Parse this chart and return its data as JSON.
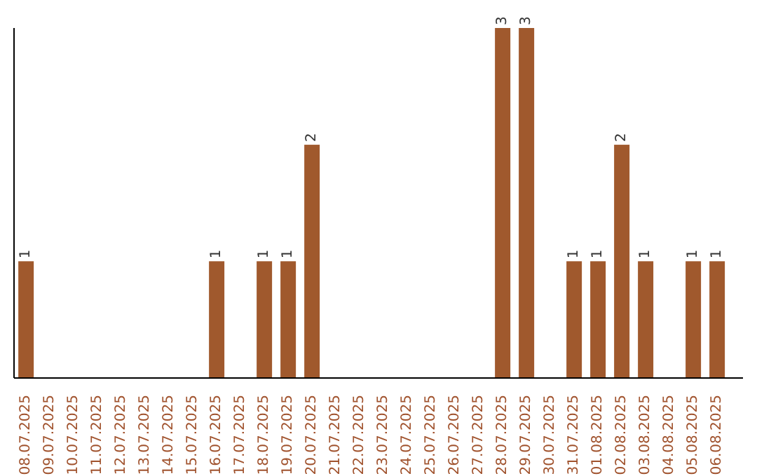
{
  "chart_data": {
    "type": "bar",
    "categories": [
      "08.07.2025",
      "09.07.2025",
      "10.07.2025",
      "11.07.2025",
      "12.07.2025",
      "13.07.2025",
      "14.07.2025",
      "15.07.2025",
      "16.07.2025",
      "17.07.2025",
      "18.07.2025",
      "19.07.2025",
      "20.07.2025",
      "21.07.2025",
      "22.07.2025",
      "23.07.2025",
      "24.07.2025",
      "25.07.2025",
      "26.07.2025",
      "27.07.2025",
      "28.07.2025",
      "29.07.2025",
      "30.07.2025",
      "31.07.2025",
      "01.08.2025",
      "02.08.2025",
      "03.08.2025",
      "04.08.2025",
      "05.08.2025",
      "06.08.2025"
    ],
    "values": [
      1,
      0,
      0,
      0,
      0,
      0,
      0,
      0,
      1,
      0,
      1,
      1,
      2,
      0,
      0,
      0,
      0,
      0,
      0,
      0,
      3,
      3,
      0,
      1,
      1,
      2,
      1,
      0,
      1,
      1
    ],
    "value_labels": [
      "1",
      null,
      null,
      null,
      null,
      null,
      null,
      null,
      "1",
      null,
      "1",
      "1",
      "2",
      null,
      null,
      null,
      null,
      null,
      null,
      null,
      "3",
      "3",
      null,
      "1",
      "1",
      "2",
      "1",
      null,
      "1",
      "1"
    ],
    "color": "#a0592d",
    "grid": false,
    "legend": false
  }
}
